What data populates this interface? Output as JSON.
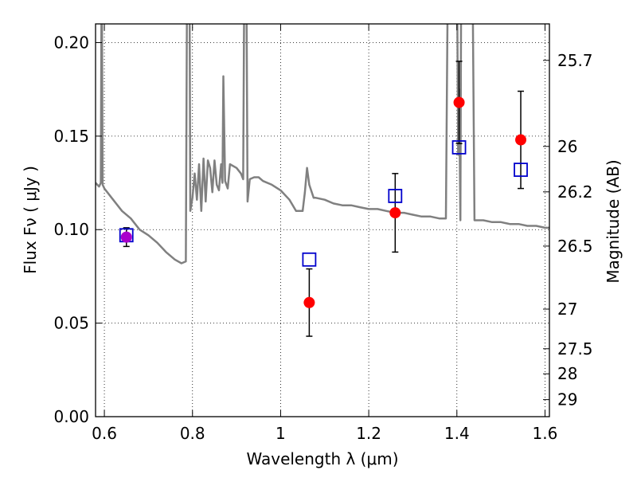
{
  "chart_data": {
    "type": "scatter",
    "xlabel": "Wavelength  λ (μm)",
    "ylabel": "Flux  Fν  ( μJy )",
    "y2label": "Magnitude (AB)",
    "xlim": [
      0.58,
      1.61
    ],
    "ylim": [
      0.0,
      0.21
    ],
    "grid": true,
    "x_ticks": [
      0.6,
      0.8,
      1.0,
      1.2,
      1.4,
      1.6
    ],
    "x_tick_labels": [
      "0.6",
      "0.8",
      "1",
      "1.2",
      "1.4",
      "1.6"
    ],
    "y_ticks": [
      0.0,
      0.05,
      0.1,
      0.15,
      0.2
    ],
    "y_tick_labels": [
      "0.00",
      "0.05",
      "0.10",
      "0.15",
      "0.20"
    ],
    "y2_ticks": [
      {
        "label": "25.7",
        "flux": 0.1905
      },
      {
        "label": "26",
        "flux": 0.1445
      },
      {
        "label": "26.2",
        "flux": 0.1202
      },
      {
        "label": "26.5",
        "flux": 0.0912
      },
      {
        "label": "27",
        "flux": 0.0575
      },
      {
        "label": "27.5",
        "flux": 0.0363
      },
      {
        "label": "28",
        "flux": 0.0229
      },
      {
        "label": "29",
        "flux": 0.0091
      }
    ],
    "observed": {
      "color": "#ff0000",
      "points": [
        {
          "x": 0.65,
          "y": 0.096,
          "err": 0.005
        },
        {
          "x": 1.065,
          "y": 0.061,
          "err": 0.018
        },
        {
          "x": 1.26,
          "y": 0.109,
          "err": 0.021
        },
        {
          "x": 1.405,
          "y": 0.168,
          "err": 0.022
        },
        {
          "x": 1.545,
          "y": 0.148,
          "err": 0.026
        }
      ]
    },
    "model_points": {
      "color": "#0000cc",
      "points": [
        {
          "x": 0.65,
          "y": 0.097
        },
        {
          "x": 1.065,
          "y": 0.084
        },
        {
          "x": 1.26,
          "y": 0.118
        },
        {
          "x": 1.405,
          "y": 0.144
        },
        {
          "x": 1.545,
          "y": 0.132
        }
      ]
    },
    "highlight_point": {
      "x": 0.65,
      "y": 0.096,
      "color": "#aa00cc"
    },
    "model_spectrum": {
      "color": "#808080",
      "points": [
        [
          0.58,
          0.125
        ],
        [
          0.588,
          0.123
        ],
        [
          0.592,
          0.125
        ],
        [
          0.594,
          0.3
        ],
        [
          0.596,
          0.124
        ],
        [
          0.6,
          0.122
        ],
        [
          0.62,
          0.116
        ],
        [
          0.64,
          0.11
        ],
        [
          0.66,
          0.106
        ],
        [
          0.68,
          0.1
        ],
        [
          0.7,
          0.097
        ],
        [
          0.72,
          0.093
        ],
        [
          0.74,
          0.088
        ],
        [
          0.76,
          0.084
        ],
        [
          0.775,
          0.082
        ],
        [
          0.785,
          0.083
        ],
        [
          0.788,
          0.3
        ],
        [
          0.793,
          0.3
        ],
        [
          0.795,
          0.11
        ],
        [
          0.8,
          0.117
        ],
        [
          0.805,
          0.13
        ],
        [
          0.81,
          0.116
        ],
        [
          0.815,
          0.135
        ],
        [
          0.82,
          0.11
        ],
        [
          0.825,
          0.138
        ],
        [
          0.83,
          0.115
        ],
        [
          0.835,
          0.137
        ],
        [
          0.84,
          0.133
        ],
        [
          0.845,
          0.12
        ],
        [
          0.85,
          0.137
        ],
        [
          0.855,
          0.124
        ],
        [
          0.86,
          0.121
        ],
        [
          0.865,
          0.135
        ],
        [
          0.868,
          0.125
        ],
        [
          0.87,
          0.182
        ],
        [
          0.874,
          0.126
        ],
        [
          0.88,
          0.122
        ],
        [
          0.885,
          0.135
        ],
        [
          0.9,
          0.133
        ],
        [
          0.91,
          0.13
        ],
        [
          0.915,
          0.127
        ],
        [
          0.918,
          0.3
        ],
        [
          0.922,
          0.3
        ],
        [
          0.925,
          0.115
        ],
        [
          0.93,
          0.127
        ],
        [
          0.94,
          0.128
        ],
        [
          0.95,
          0.128
        ],
        [
          0.96,
          0.126
        ],
        [
          0.98,
          0.124
        ],
        [
          1.0,
          0.121
        ],
        [
          1.02,
          0.116
        ],
        [
          1.035,
          0.11
        ],
        [
          1.05,
          0.11
        ],
        [
          1.055,
          0.12
        ],
        [
          1.06,
          0.133
        ],
        [
          1.065,
          0.124
        ],
        [
          1.075,
          0.117
        ],
        [
          1.08,
          0.117
        ],
        [
          1.1,
          0.116
        ],
        [
          1.12,
          0.114
        ],
        [
          1.14,
          0.113
        ],
        [
          1.16,
          0.113
        ],
        [
          1.18,
          0.112
        ],
        [
          1.2,
          0.111
        ],
        [
          1.22,
          0.111
        ],
        [
          1.24,
          0.11
        ],
        [
          1.26,
          0.109
        ],
        [
          1.28,
          0.109
        ],
        [
          1.3,
          0.108
        ],
        [
          1.32,
          0.107
        ],
        [
          1.34,
          0.107
        ],
        [
          1.36,
          0.106
        ],
        [
          1.375,
          0.106
        ],
        [
          1.38,
          0.3
        ],
        [
          1.4,
          0.3
        ],
        [
          1.403,
          0.14
        ],
        [
          1.405,
          0.175
        ],
        [
          1.408,
          0.105
        ],
        [
          1.41,
          0.3
        ],
        [
          1.435,
          0.3
        ],
        [
          1.44,
          0.105
        ],
        [
          1.46,
          0.105
        ],
        [
          1.48,
          0.104
        ],
        [
          1.5,
          0.104
        ],
        [
          1.52,
          0.103
        ],
        [
          1.54,
          0.103
        ],
        [
          1.56,
          0.102
        ],
        [
          1.58,
          0.102
        ],
        [
          1.6,
          0.101
        ],
        [
          1.61,
          0.101
        ]
      ]
    }
  }
}
